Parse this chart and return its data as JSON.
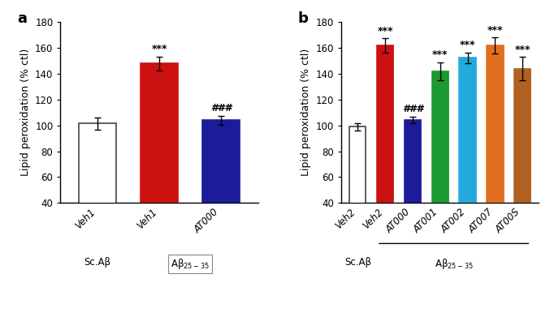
{
  "panel_a": {
    "bars": [
      {
        "label": "Veh1",
        "value": 101.5,
        "sem": 4.5,
        "color": "white",
        "edgecolor": "#444444",
        "annotation": null,
        "group": "sc"
      },
      {
        "label": "Veh1",
        "value": 148.0,
        "sem": 5.5,
        "color": "#cc1111",
        "edgecolor": "#cc1111",
        "annotation": "***",
        "group": "ab"
      },
      {
        "label": "AT000",
        "value": 104.0,
        "sem": 3.5,
        "color": "#1c1c9a",
        "edgecolor": "#1c1c9a",
        "annotation": "###",
        "group": "ab"
      }
    ],
    "ylim": [
      40,
      180
    ],
    "yticks": [
      40,
      60,
      80,
      100,
      120,
      140,
      160,
      180
    ],
    "ylabel": "Lipid peroxidation (% ctl)",
    "label": "a"
  },
  "panel_b": {
    "bars": [
      {
        "label": "Veh2",
        "value": 99.0,
        "sem": 3.0,
        "color": "white",
        "edgecolor": "#444444",
        "annotation": null,
        "group": "sc"
      },
      {
        "label": "Veh2",
        "value": 162.0,
        "sem": 5.5,
        "color": "#cc1111",
        "edgecolor": "#cc1111",
        "annotation": "***",
        "group": "ab"
      },
      {
        "label": "AT000",
        "value": 104.5,
        "sem": 2.5,
        "color": "#1c1c9a",
        "edgecolor": "#1c1c9a",
        "annotation": "###",
        "group": "ab"
      },
      {
        "label": "AT001",
        "value": 142.0,
        "sem": 7.0,
        "color": "#1a9a30",
        "edgecolor": "#1a9a30",
        "annotation": "***",
        "group": "ab"
      },
      {
        "label": "AT002",
        "value": 152.5,
        "sem": 4.0,
        "color": "#22aadd",
        "edgecolor": "#22aadd",
        "annotation": "***",
        "group": "ab"
      },
      {
        "label": "AT007",
        "value": 162.0,
        "sem": 6.0,
        "color": "#e07020",
        "edgecolor": "#e07020",
        "annotation": "***",
        "group": "ab"
      },
      {
        "label": "AT00S",
        "value": 144.0,
        "sem": 9.0,
        "color": "#b06020",
        "edgecolor": "#b06020",
        "annotation": "***",
        "group": "ab"
      }
    ],
    "ylim": [
      40,
      180
    ],
    "yticks": [
      40,
      60,
      80,
      100,
      120,
      140,
      160,
      180
    ],
    "ylabel": "Lipid peroxidation (% ctl)",
    "label": "b"
  },
  "bar_width": 0.6,
  "background": "white",
  "ann_fontsize": 9,
  "label_fontsize": 8.5,
  "ylabel_fontsize": 9
}
